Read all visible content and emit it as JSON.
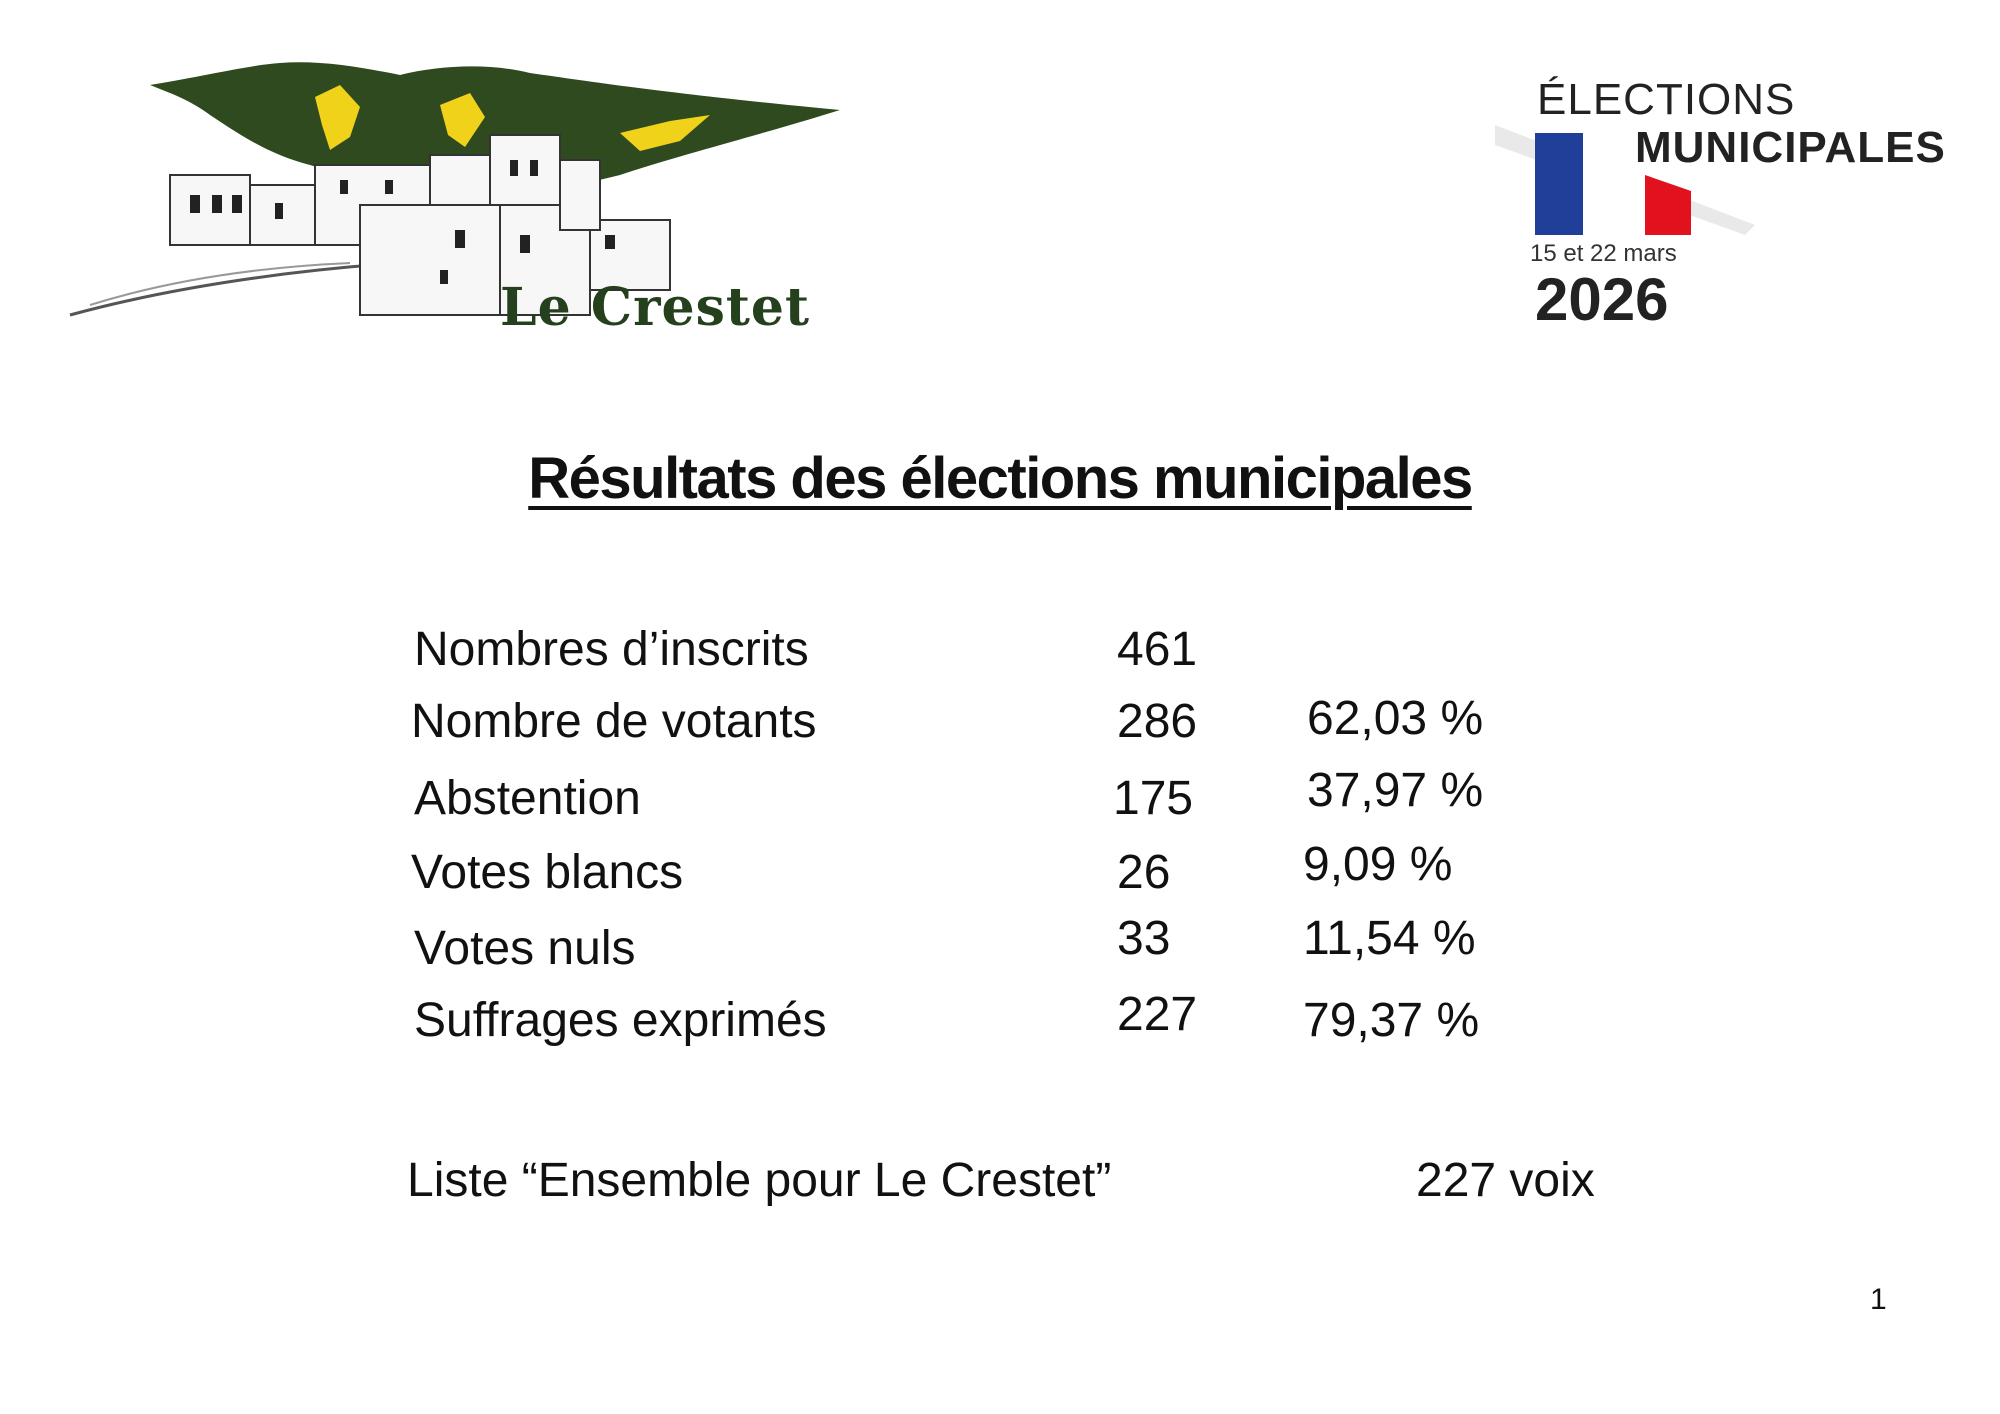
{
  "left_logo": {
    "town_name": "Le Crestet",
    "green": "#2f4a1f",
    "yellow": "#f0d21a",
    "name_color": "#24401c"
  },
  "right_logo": {
    "line1": "ÉLECTIONS",
    "line2": "MUNICIPALES",
    "dates": "15 et 22 mars",
    "year": "2026",
    "flag_blue": "#1f3f98",
    "flag_red": "#e1121e"
  },
  "title": "Résultats des élections municipales",
  "results": [
    {
      "label": "Nombres d’inscrits",
      "count": "461",
      "percent": ""
    },
    {
      "label": "Nombre de votants",
      "count": "286",
      "percent": "62,03 %"
    },
    {
      "label": "Abstention",
      "count": "175",
      "percent": "37,97 %"
    },
    {
      "label": "Votes blancs",
      "count": "26",
      "percent": "9,09 %"
    },
    {
      "label": "Votes nuls",
      "count": "33",
      "percent": "11,54 %"
    },
    {
      "label": "Suffrages exprimés",
      "count": "227",
      "percent": "79,37 %"
    }
  ],
  "list": {
    "label": "Liste “Ensemble pour Le Crestet”",
    "votes": "227 voix"
  },
  "page_number": "1"
}
